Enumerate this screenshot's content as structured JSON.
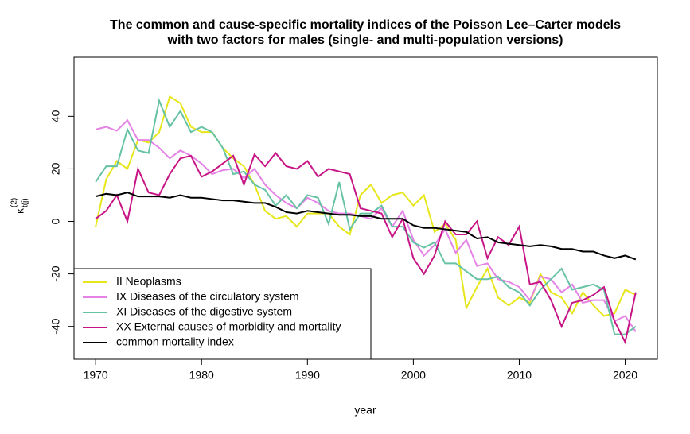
{
  "chart_data": {
    "type": "line",
    "title": [
      "The common and cause-specific mortality indices of the Poisson Lee–Carter models",
      "with two factors for males (single- and multi-population versions)"
    ],
    "xlabel": "year",
    "ylabel": {
      "symbol": "κ",
      "sub": "t(j)",
      "sup": "(2)"
    },
    "x": [
      1970,
      1971,
      1972,
      1973,
      1974,
      1975,
      1976,
      1977,
      1978,
      1979,
      1980,
      1981,
      1982,
      1983,
      1984,
      1985,
      1986,
      1987,
      1988,
      1989,
      1990,
      1991,
      1992,
      1993,
      1994,
      1995,
      1996,
      1997,
      1998,
      1999,
      2000,
      2001,
      2002,
      2003,
      2004,
      2005,
      2006,
      2007,
      2008,
      2009,
      2010,
      2011,
      2012,
      2013,
      2014,
      2015,
      2016,
      2017,
      2018,
      2019,
      2020,
      2021
    ],
    "xlim": [
      1967.96,
      2023.04
    ],
    "xticks": [
      1970,
      1980,
      1990,
      2000,
      2010,
      2020
    ],
    "ylim": [
      -52.5,
      62.5
    ],
    "yticks": [
      -40,
      -20,
      0,
      20,
      40
    ],
    "legend": "bottomleft",
    "series": [
      {
        "name": "II Neoplasms",
        "color": "#e6e61a",
        "values": [
          -2,
          16,
          23,
          20,
          31,
          30,
          34,
          47.5,
          45,
          36,
          34,
          34,
          28,
          24,
          21,
          14,
          4,
          1,
          2,
          -2,
          3,
          3,
          3,
          -2,
          -5,
          10,
          14,
          7,
          10,
          11,
          6,
          10,
          -4,
          -1,
          -7,
          -33,
          -25,
          -18,
          -29,
          -32,
          -29,
          -31,
          -20,
          -27,
          -29,
          -35,
          -27,
          -32,
          -36,
          -35,
          -26,
          -28
        ]
      },
      {
        "name": "IX Diseases of the circulatory system",
        "color": "#e482e6",
        "values": [
          35,
          36,
          34.5,
          38.5,
          31,
          31,
          28,
          24,
          27,
          25,
          22,
          18,
          19.5,
          20,
          16.5,
          20,
          14,
          10,
          7,
          5,
          9,
          7,
          4,
          3,
          3,
          2,
          1,
          5,
          -2,
          4,
          -7,
          -13,
          -9,
          -3,
          -12,
          -7,
          -17,
          -16,
          -22,
          -23,
          -25,
          -30,
          -21,
          -22,
          -27,
          -24,
          -31,
          -30,
          -30,
          -38,
          -36,
          -42
        ]
      },
      {
        "name": "XI Diseases of the digestive system",
        "color": "#66c2a5",
        "values": [
          15,
          21,
          21,
          35,
          27,
          26,
          46,
          36,
          42,
          34,
          36,
          34,
          28,
          18,
          19,
          14,
          12,
          6,
          10,
          5,
          10,
          9,
          -1,
          15,
          -3,
          3,
          3,
          6,
          -2,
          -2,
          -8,
          -10,
          -8,
          -16,
          -16,
          -19,
          -22,
          -22,
          -21,
          -25,
          -27,
          -32,
          -26,
          -22,
          -18,
          -26,
          -25,
          -24,
          -26,
          -43,
          -43,
          -40
        ]
      },
      {
        "name": "XX External causes of morbidity and mortality",
        "color": "#c71585",
        "values": [
          1,
          4,
          10,
          0,
          20,
          11,
          10,
          18,
          24,
          25,
          17,
          19,
          22,
          25,
          14,
          25.5,
          21,
          26,
          21,
          20,
          23,
          17,
          20,
          19,
          18,
          5,
          4,
          3,
          -6,
          1,
          -14,
          -20,
          -13,
          0,
          -5,
          -5,
          0,
          -14,
          -6,
          -9,
          -2,
          -24,
          -23,
          -30,
          -40,
          -31,
          -30,
          -28,
          -25,
          -38,
          -46,
          -27
        ]
      },
      {
        "name": "common mortality index",
        "color": "#000000",
        "values": [
          9.5,
          10.5,
          10,
          11,
          9.5,
          9.5,
          9.5,
          9,
          10,
          9,
          9,
          8.5,
          8,
          8,
          7.5,
          7,
          7,
          5.5,
          3.5,
          3,
          4,
          3.5,
          3,
          2.5,
          2.5,
          2,
          2,
          1,
          1,
          1,
          -1.5,
          -2.5,
          -2.5,
          -3,
          -3.5,
          -4,
          -6.5,
          -6,
          -8,
          -8.5,
          -9,
          -9.5,
          -9,
          -9.5,
          -10.5,
          -10.5,
          -11.5,
          -11.5,
          -13,
          -14,
          -13,
          -14.5
        ]
      }
    ]
  }
}
